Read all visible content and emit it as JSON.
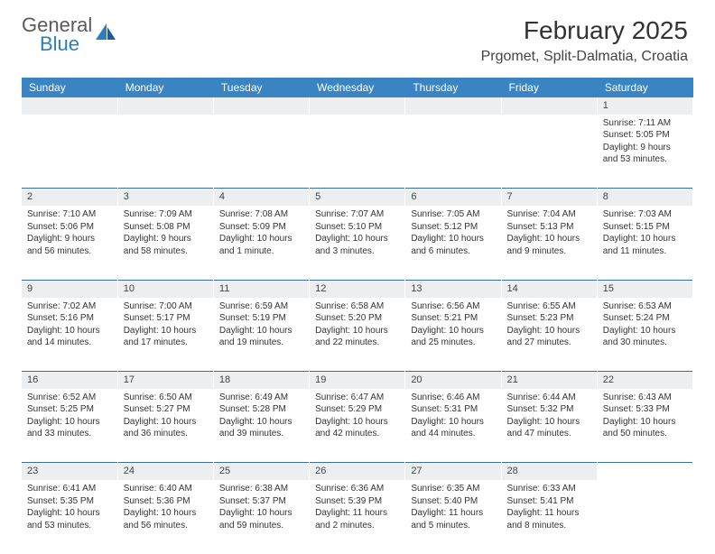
{
  "brand": {
    "line1": "General",
    "line2": "Blue"
  },
  "title": "February 2025",
  "location": "Prgomet, Split-Dalmatia, Croatia",
  "colors": {
    "header_bg": "#3b84c4",
    "daynum_bg": "#edeef0",
    "text": "#333333",
    "brand_gray": "#5a5a5a",
    "brand_blue": "#2a7fbf"
  },
  "day_labels": [
    "Sunday",
    "Monday",
    "Tuesday",
    "Wednesday",
    "Thursday",
    "Friday",
    "Saturday"
  ],
  "weeks": [
    [
      null,
      null,
      null,
      null,
      null,
      null,
      {
        "n": "1",
        "sunrise": "Sunrise: 7:11 AM",
        "sunset": "Sunset: 5:05 PM",
        "daylight": "Daylight: 9 hours and 53 minutes."
      }
    ],
    [
      {
        "n": "2",
        "sunrise": "Sunrise: 7:10 AM",
        "sunset": "Sunset: 5:06 PM",
        "daylight": "Daylight: 9 hours and 56 minutes."
      },
      {
        "n": "3",
        "sunrise": "Sunrise: 7:09 AM",
        "sunset": "Sunset: 5:08 PM",
        "daylight": "Daylight: 9 hours and 58 minutes."
      },
      {
        "n": "4",
        "sunrise": "Sunrise: 7:08 AM",
        "sunset": "Sunset: 5:09 PM",
        "daylight": "Daylight: 10 hours and 1 minute."
      },
      {
        "n": "5",
        "sunrise": "Sunrise: 7:07 AM",
        "sunset": "Sunset: 5:10 PM",
        "daylight": "Daylight: 10 hours and 3 minutes."
      },
      {
        "n": "6",
        "sunrise": "Sunrise: 7:05 AM",
        "sunset": "Sunset: 5:12 PM",
        "daylight": "Daylight: 10 hours and 6 minutes."
      },
      {
        "n": "7",
        "sunrise": "Sunrise: 7:04 AM",
        "sunset": "Sunset: 5:13 PM",
        "daylight": "Daylight: 10 hours and 9 minutes."
      },
      {
        "n": "8",
        "sunrise": "Sunrise: 7:03 AM",
        "sunset": "Sunset: 5:15 PM",
        "daylight": "Daylight: 10 hours and 11 minutes."
      }
    ],
    [
      {
        "n": "9",
        "sunrise": "Sunrise: 7:02 AM",
        "sunset": "Sunset: 5:16 PM",
        "daylight": "Daylight: 10 hours and 14 minutes."
      },
      {
        "n": "10",
        "sunrise": "Sunrise: 7:00 AM",
        "sunset": "Sunset: 5:17 PM",
        "daylight": "Daylight: 10 hours and 17 minutes."
      },
      {
        "n": "11",
        "sunrise": "Sunrise: 6:59 AM",
        "sunset": "Sunset: 5:19 PM",
        "daylight": "Daylight: 10 hours and 19 minutes."
      },
      {
        "n": "12",
        "sunrise": "Sunrise: 6:58 AM",
        "sunset": "Sunset: 5:20 PM",
        "daylight": "Daylight: 10 hours and 22 minutes."
      },
      {
        "n": "13",
        "sunrise": "Sunrise: 6:56 AM",
        "sunset": "Sunset: 5:21 PM",
        "daylight": "Daylight: 10 hours and 25 minutes."
      },
      {
        "n": "14",
        "sunrise": "Sunrise: 6:55 AM",
        "sunset": "Sunset: 5:23 PM",
        "daylight": "Daylight: 10 hours and 27 minutes."
      },
      {
        "n": "15",
        "sunrise": "Sunrise: 6:53 AM",
        "sunset": "Sunset: 5:24 PM",
        "daylight": "Daylight: 10 hours and 30 minutes."
      }
    ],
    [
      {
        "n": "16",
        "sunrise": "Sunrise: 6:52 AM",
        "sunset": "Sunset: 5:25 PM",
        "daylight": "Daylight: 10 hours and 33 minutes."
      },
      {
        "n": "17",
        "sunrise": "Sunrise: 6:50 AM",
        "sunset": "Sunset: 5:27 PM",
        "daylight": "Daylight: 10 hours and 36 minutes."
      },
      {
        "n": "18",
        "sunrise": "Sunrise: 6:49 AM",
        "sunset": "Sunset: 5:28 PM",
        "daylight": "Daylight: 10 hours and 39 minutes."
      },
      {
        "n": "19",
        "sunrise": "Sunrise: 6:47 AM",
        "sunset": "Sunset: 5:29 PM",
        "daylight": "Daylight: 10 hours and 42 minutes."
      },
      {
        "n": "20",
        "sunrise": "Sunrise: 6:46 AM",
        "sunset": "Sunset: 5:31 PM",
        "daylight": "Daylight: 10 hours and 44 minutes."
      },
      {
        "n": "21",
        "sunrise": "Sunrise: 6:44 AM",
        "sunset": "Sunset: 5:32 PM",
        "daylight": "Daylight: 10 hours and 47 minutes."
      },
      {
        "n": "22",
        "sunrise": "Sunrise: 6:43 AM",
        "sunset": "Sunset: 5:33 PM",
        "daylight": "Daylight: 10 hours and 50 minutes."
      }
    ],
    [
      {
        "n": "23",
        "sunrise": "Sunrise: 6:41 AM",
        "sunset": "Sunset: 5:35 PM",
        "daylight": "Daylight: 10 hours and 53 minutes."
      },
      {
        "n": "24",
        "sunrise": "Sunrise: 6:40 AM",
        "sunset": "Sunset: 5:36 PM",
        "daylight": "Daylight: 10 hours and 56 minutes."
      },
      {
        "n": "25",
        "sunrise": "Sunrise: 6:38 AM",
        "sunset": "Sunset: 5:37 PM",
        "daylight": "Daylight: 10 hours and 59 minutes."
      },
      {
        "n": "26",
        "sunrise": "Sunrise: 6:36 AM",
        "sunset": "Sunset: 5:39 PM",
        "daylight": "Daylight: 11 hours and 2 minutes."
      },
      {
        "n": "27",
        "sunrise": "Sunrise: 6:35 AM",
        "sunset": "Sunset: 5:40 PM",
        "daylight": "Daylight: 11 hours and 5 minutes."
      },
      {
        "n": "28",
        "sunrise": "Sunrise: 6:33 AM",
        "sunset": "Sunset: 5:41 PM",
        "daylight": "Daylight: 11 hours and 8 minutes."
      },
      null
    ]
  ]
}
